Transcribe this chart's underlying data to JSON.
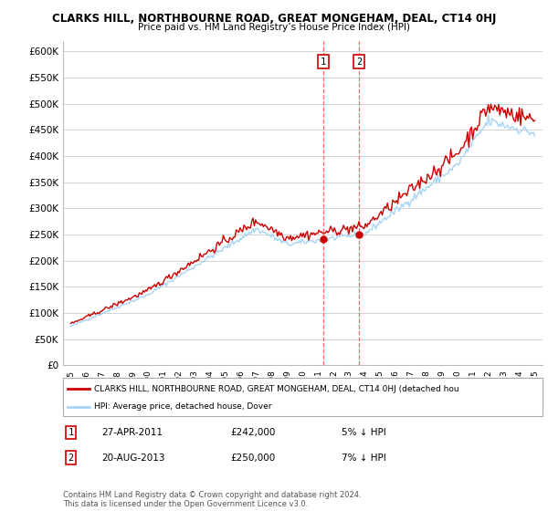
{
  "title": "CLARKS HILL, NORTHBOURNE ROAD, GREAT MONGEHAM, DEAL, CT14 0HJ",
  "subtitle": "Price paid vs. HM Land Registry’s House Price Index (HPI)",
  "ylim": [
    0,
    620000
  ],
  "yticks": [
    0,
    50000,
    100000,
    150000,
    200000,
    250000,
    300000,
    350000,
    400000,
    450000,
    500000,
    550000,
    600000
  ],
  "ytick_labels": [
    "£0",
    "£50K",
    "£100K",
    "£150K",
    "£200K",
    "£250K",
    "£300K",
    "£350K",
    "£400K",
    "£450K",
    "£500K",
    "£550K",
    "£600K"
  ],
  "transaction1": {
    "date_num": 2011.32,
    "price": 242000,
    "label": "1"
  },
  "transaction2": {
    "date_num": 2013.64,
    "price": 250000,
    "label": "2"
  },
  "hpi_color": "#a8d4f5",
  "price_color": "#cc0000",
  "vline_color": "#ff6666",
  "marker_color": "#cc0000",
  "grid_color": "#cccccc",
  "bg_color": "#ffffff",
  "legend_label_price": "CLARKS HILL, NORTHBOURNE ROAD, GREAT MONGEHAM, DEAL, CT14 0HJ (detached hou",
  "legend_label_hpi": "HPI: Average price, detached house, Dover",
  "ann1_label": "1",
  "ann1_date": "27-APR-2011",
  "ann1_price": "£242,000",
  "ann1_hpi": "5% ↓ HPI",
  "ann2_label": "2",
  "ann2_date": "20-AUG-2013",
  "ann2_price": "£250,000",
  "ann2_hpi": "7% ↓ HPI",
  "footer": "Contains HM Land Registry data © Crown copyright and database right 2024.\nThis data is licensed under the Open Government Licence v3.0."
}
